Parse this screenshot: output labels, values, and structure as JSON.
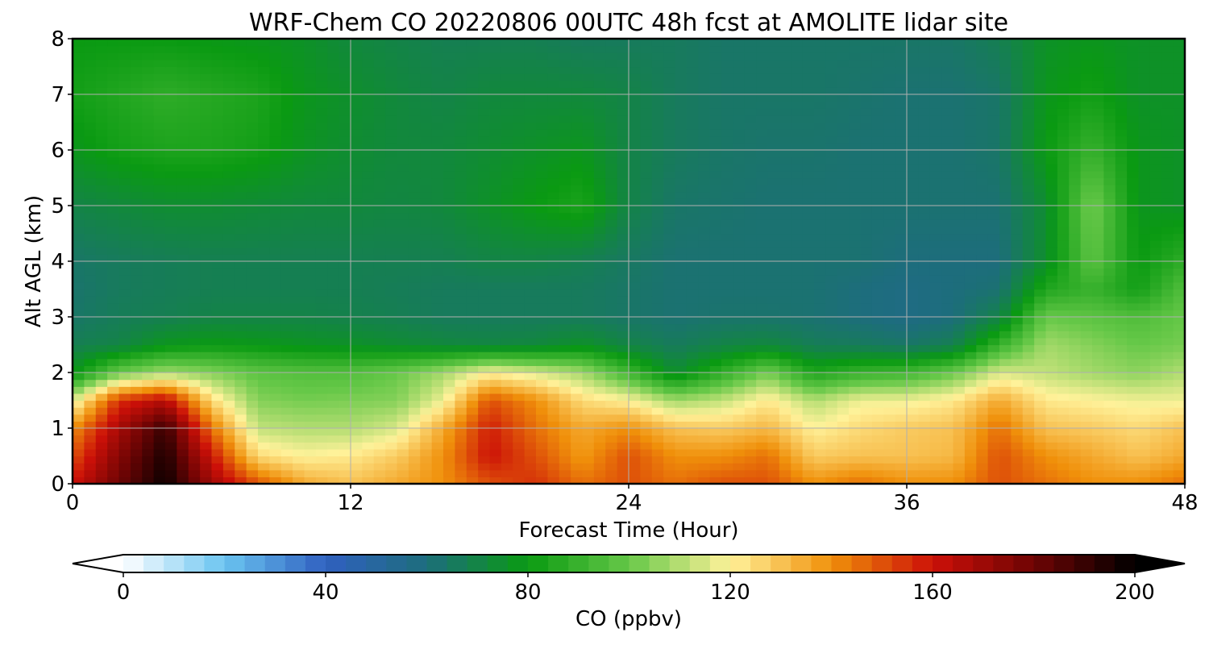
{
  "chart_data": {
    "type": "heatmap",
    "title": "WRF-Chem CO  20220806 00UTC 48h fcst at AMOLITE lidar site",
    "xlabel": "Forecast Time (Hour)",
    "ylabel": "Alt AGL (km)",
    "xlim": [
      0,
      48
    ],
    "ylim": [
      0,
      8
    ],
    "x_ticks": [
      0,
      12,
      24,
      36,
      48
    ],
    "y_ticks": [
      0,
      1,
      2,
      3,
      4,
      5,
      6,
      7,
      8
    ],
    "grid": true,
    "x_hours": [
      0,
      2,
      4,
      6,
      8,
      10,
      12,
      14,
      16,
      18,
      20,
      22,
      24,
      26,
      28,
      30,
      32,
      34,
      36,
      38,
      40,
      42,
      44,
      46,
      48
    ],
    "altitude_km": [
      0.0,
      0.5,
      1.0,
      1.5,
      2.0,
      2.5,
      3.0,
      3.5,
      4.0,
      5.0,
      6.0,
      7.0,
      8.0
    ],
    "co_ppbv": [
      [
        160,
        180,
        198,
        170,
        150,
        135,
        130,
        135,
        140,
        150,
        155,
        145,
        150,
        145,
        150,
        150,
        140,
        145,
        140,
        140,
        150,
        145,
        140,
        140,
        145
      ],
      [
        150,
        175,
        195,
        160,
        125,
        120,
        122,
        128,
        140,
        160,
        150,
        138,
        150,
        140,
        140,
        145,
        128,
        130,
        130,
        132,
        150,
        140,
        135,
        130,
        135
      ],
      [
        140,
        168,
        190,
        145,
        112,
        110,
        110,
        115,
        135,
        158,
        145,
        135,
        140,
        130,
        128,
        132,
        120,
        125,
        128,
        130,
        145,
        130,
        128,
        125,
        130
      ],
      [
        115,
        155,
        165,
        125,
        104,
        102,
        103,
        104,
        118,
        150,
        140,
        125,
        120,
        108,
        112,
        122,
        110,
        118,
        118,
        122,
        135,
        122,
        120,
        118,
        118
      ],
      [
        78,
        100,
        108,
        104,
        98,
        96,
        96,
        100,
        108,
        120,
        115,
        108,
        92,
        74,
        88,
        102,
        84,
        90,
        92,
        100,
        115,
        112,
        108,
        105,
        110
      ],
      [
        68,
        70,
        78,
        80,
        79,
        77,
        76,
        74,
        72,
        71,
        72,
        76,
        70,
        66,
        70,
        72,
        67,
        66,
        64,
        68,
        90,
        108,
        104,
        100,
        102
      ],
      [
        64,
        67,
        68,
        70,
        70,
        70,
        69,
        68,
        66,
        66,
        66,
        66,
        64,
        62,
        63,
        63,
        62,
        60,
        58,
        60,
        70,
        100,
        98,
        95,
        100
      ],
      [
        63,
        66,
        67,
        68,
        68,
        68,
        68,
        67,
        66,
        66,
        66,
        66,
        64,
        62,
        62,
        62,
        62,
        60,
        58,
        60,
        62,
        85,
        90,
        82,
        96
      ],
      [
        64,
        66,
        67,
        68,
        68,
        68,
        68,
        68,
        68,
        70,
        70,
        68,
        65,
        62,
        62,
        62,
        62,
        62,
        60,
        60,
        60,
        75,
        98,
        80,
        88
      ],
      [
        70,
        72,
        74,
        74,
        73,
        72,
        72,
        71,
        72,
        76,
        80,
        84,
        70,
        64,
        63,
        62,
        62,
        62,
        62,
        62,
        62,
        74,
        102,
        78,
        76
      ],
      [
        78,
        82,
        84,
        84,
        82,
        77,
        74,
        72,
        72,
        74,
        76,
        78,
        70,
        66,
        64,
        63,
        63,
        62,
        62,
        62,
        64,
        80,
        90,
        78,
        76
      ],
      [
        82,
        85,
        88,
        86,
        84,
        78,
        75,
        72,
        70,
        72,
        72,
        72,
        70,
        66,
        64,
        64,
        64,
        63,
        62,
        62,
        64,
        78,
        82,
        76,
        76
      ],
      [
        80,
        80,
        80,
        79,
        78,
        76,
        72,
        70,
        68,
        68,
        68,
        66,
        66,
        66,
        64,
        64,
        64,
        64,
        64,
        64,
        68,
        76,
        78,
        76,
        76
      ]
    ],
    "colorbar": {
      "label": "CO  (ppbv)",
      "min": 0,
      "max": 200,
      "ticks": [
        0,
        40,
        80,
        120,
        160,
        200
      ],
      "extend": "both"
    },
    "colors": [
      "#ffffff",
      "#6ac4f0",
      "#3060c0",
      "#1d6d7c",
      "#0a9a12",
      "#66c848",
      "#fff29a",
      "#f0900a",
      "#cc1008",
      "#6e0404",
      "#000000"
    ]
  }
}
